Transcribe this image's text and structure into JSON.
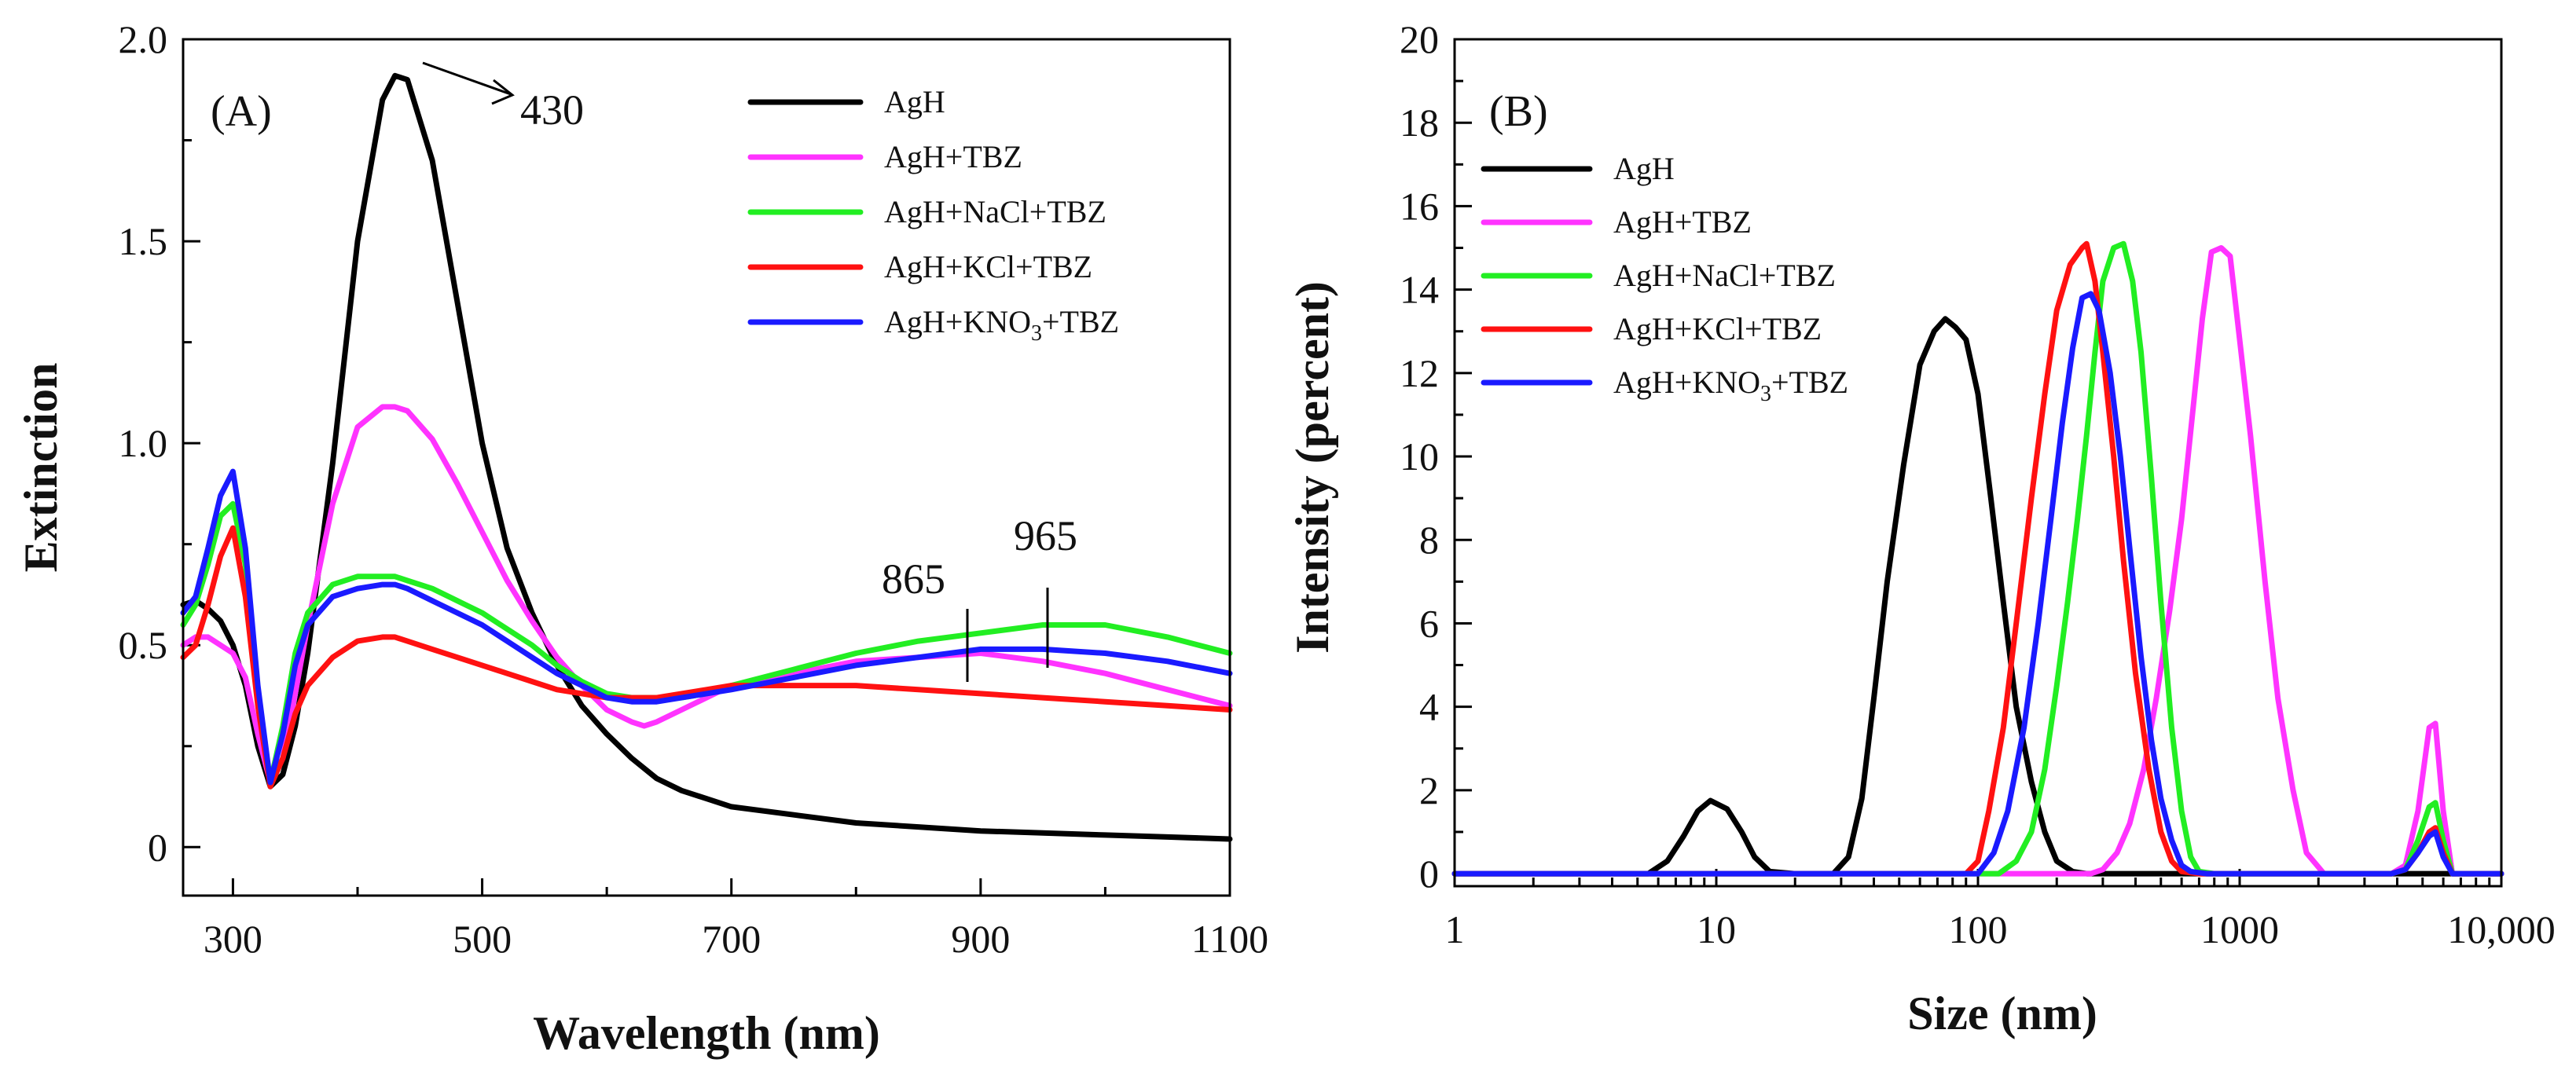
{
  "chart_data": [
    {
      "panel": "(A)",
      "type": "line",
      "xlabel": "Wavelength (nm)",
      "ylabel": "Extinction",
      "xlim": [
        260,
        1100
      ],
      "ylim": [
        -0.12,
        2.0
      ],
      "xticks": [
        300,
        500,
        700,
        900,
        1100
      ],
      "xtick_labels": [
        "300",
        "500",
        "700",
        "900",
        "1100"
      ],
      "yticks": [
        0,
        0.5,
        1.0,
        1.5,
        2.0
      ],
      "ytick_labels": [
        "0",
        "0.5",
        "1.0",
        "1.5",
        "2.0"
      ],
      "legend_position": "top-right",
      "annotations": [
        {
          "text": "430",
          "x": 430,
          "y": 1.9
        },
        {
          "text": "865",
          "x": 890,
          "y": 0.48
        },
        {
          "text": "965",
          "x": 960,
          "y": 0.55
        }
      ],
      "series": [
        {
          "name": "AgH",
          "name_base": "AgH",
          "color": "#000000",
          "x": [
            260,
            270,
            280,
            290,
            300,
            310,
            320,
            330,
            340,
            350,
            360,
            380,
            400,
            420,
            430,
            440,
            460,
            480,
            500,
            520,
            540,
            560,
            580,
            600,
            620,
            640,
            660,
            680,
            700,
            750,
            800,
            850,
            900,
            950,
            1000,
            1050,
            1100
          ],
          "y": [
            0.6,
            0.61,
            0.59,
            0.56,
            0.5,
            0.4,
            0.25,
            0.15,
            0.18,
            0.3,
            0.48,
            0.95,
            1.5,
            1.85,
            1.91,
            1.9,
            1.7,
            1.35,
            1.0,
            0.74,
            0.58,
            0.45,
            0.35,
            0.28,
            0.22,
            0.17,
            0.14,
            0.12,
            0.1,
            0.08,
            0.06,
            0.05,
            0.04,
            0.035,
            0.03,
            0.025,
            0.02
          ]
        },
        {
          "name": "AgH+TBZ",
          "name_base": "AgH+TBZ",
          "color": "#ff33ff",
          "x": [
            260,
            270,
            280,
            290,
            300,
            310,
            320,
            330,
            340,
            350,
            360,
            380,
            400,
            420,
            430,
            440,
            460,
            480,
            500,
            520,
            540,
            560,
            580,
            600,
            620,
            630,
            640,
            660,
            680,
            700,
            750,
            800,
            850,
            900,
            950,
            1000,
            1050,
            1100
          ],
          "y": [
            0.5,
            0.52,
            0.52,
            0.5,
            0.48,
            0.42,
            0.28,
            0.16,
            0.22,
            0.38,
            0.55,
            0.85,
            1.04,
            1.09,
            1.09,
            1.08,
            1.01,
            0.9,
            0.78,
            0.66,
            0.56,
            0.47,
            0.4,
            0.34,
            0.31,
            0.3,
            0.31,
            0.34,
            0.37,
            0.4,
            0.43,
            0.46,
            0.47,
            0.48,
            0.46,
            0.43,
            0.39,
            0.35
          ]
        },
        {
          "name": "AgH+NaCl+TBZ",
          "name_base": "AgH+NaCl+TBZ",
          "color": "#22ee22",
          "x": [
            260,
            270,
            280,
            290,
            300,
            310,
            320,
            330,
            340,
            350,
            360,
            380,
            400,
            420,
            430,
            440,
            460,
            480,
            500,
            520,
            540,
            560,
            580,
            600,
            620,
            640,
            660,
            680,
            700,
            750,
            800,
            850,
            900,
            950,
            1000,
            1050,
            1100
          ],
          "y": [
            0.55,
            0.6,
            0.7,
            0.82,
            0.85,
            0.7,
            0.38,
            0.16,
            0.3,
            0.48,
            0.58,
            0.65,
            0.67,
            0.67,
            0.67,
            0.66,
            0.64,
            0.61,
            0.58,
            0.54,
            0.5,
            0.45,
            0.41,
            0.38,
            0.37,
            0.37,
            0.37,
            0.38,
            0.4,
            0.44,
            0.48,
            0.51,
            0.53,
            0.55,
            0.55,
            0.52,
            0.48
          ]
        },
        {
          "name": "AgH+KCl+TBZ",
          "name_base": "AgH+KCl+TBZ",
          "color": "#ff1111",
          "x": [
            260,
            270,
            280,
            290,
            300,
            310,
            320,
            330,
            340,
            350,
            360,
            380,
            400,
            420,
            430,
            440,
            460,
            480,
            500,
            520,
            540,
            560,
            580,
            600,
            620,
            640,
            660,
            680,
            700,
            750,
            800,
            850,
            900,
            950,
            1000,
            1050,
            1100
          ],
          "y": [
            0.47,
            0.5,
            0.6,
            0.72,
            0.79,
            0.62,
            0.35,
            0.15,
            0.22,
            0.33,
            0.4,
            0.47,
            0.51,
            0.52,
            0.52,
            0.51,
            0.49,
            0.47,
            0.45,
            0.43,
            0.41,
            0.39,
            0.38,
            0.37,
            0.37,
            0.37,
            0.38,
            0.39,
            0.4,
            0.4,
            0.4,
            0.39,
            0.38,
            0.37,
            0.36,
            0.35,
            0.34
          ]
        },
        {
          "name": "AgH+KNO₃+TBZ",
          "name_base": "AgH+KNO",
          "name_sub": "3",
          "name_tail": "+TBZ",
          "color": "#1a1aff",
          "x": [
            260,
            270,
            280,
            290,
            300,
            310,
            320,
            330,
            340,
            350,
            360,
            380,
            400,
            420,
            430,
            440,
            460,
            480,
            500,
            520,
            540,
            560,
            580,
            600,
            620,
            640,
            660,
            680,
            700,
            750,
            800,
            850,
            900,
            950,
            1000,
            1050,
            1100
          ],
          "y": [
            0.58,
            0.62,
            0.74,
            0.87,
            0.93,
            0.74,
            0.4,
            0.16,
            0.28,
            0.45,
            0.55,
            0.62,
            0.64,
            0.65,
            0.65,
            0.64,
            0.61,
            0.58,
            0.55,
            0.51,
            0.47,
            0.43,
            0.4,
            0.37,
            0.36,
            0.36,
            0.37,
            0.38,
            0.39,
            0.42,
            0.45,
            0.47,
            0.49,
            0.49,
            0.48,
            0.46,
            0.43
          ]
        }
      ]
    },
    {
      "panel": "(B)",
      "type": "line",
      "xscale": "log",
      "xlabel": "Size (nm)",
      "ylabel": "Intensity (percent)",
      "xlim": [
        1,
        10000
      ],
      "ylim": [
        -0.3,
        20
      ],
      "xticks": [
        1,
        10,
        100,
        1000,
        10000
      ],
      "xtick_labels": [
        "1",
        "10",
        "100",
        "1000",
        "10,000"
      ],
      "yticks": [
        0,
        2,
        4,
        6,
        8,
        10,
        12,
        14,
        16,
        18,
        20
      ],
      "ytick_labels": [
        "0",
        "2",
        "4",
        "6",
        "8",
        "10",
        "12",
        "14",
        "16",
        "18",
        "20"
      ],
      "legend_position": "top-left",
      "series": [
        {
          "name": "AgH",
          "name_base": "AgH",
          "color": "#000000",
          "x": [
            1,
            5.5,
            6.5,
            7.5,
            8.5,
            9.5,
            11,
            12.5,
            14,
            16,
            20,
            28,
            32,
            36,
            40,
            45,
            52,
            60,
            68,
            75,
            82,
            90,
            100,
            112,
            125,
            140,
            160,
            180,
            200,
            230,
            260,
            1000,
            10000
          ],
          "y": [
            0,
            0,
            0.3,
            0.9,
            1.5,
            1.75,
            1.55,
            1.0,
            0.4,
            0.05,
            0,
            0,
            0.4,
            1.8,
            4.2,
            7.0,
            9.8,
            12.2,
            13.0,
            13.3,
            13.1,
            12.8,
            11.5,
            9.0,
            6.5,
            4.0,
            2.2,
            1.0,
            0.3,
            0.05,
            0,
            0,
            0
          ]
        },
        {
          "name": "AgH+TBZ",
          "name_base": "AgH+TBZ",
          "color": "#ff33ff",
          "x": [
            1,
            270,
            300,
            340,
            380,
            430,
            480,
            540,
            600,
            660,
            720,
            780,
            850,
            920,
            1000,
            1100,
            1250,
            1400,
            1600,
            1800,
            2100,
            3800,
            4300,
            4800,
            5300,
            5600,
            6000,
            6500,
            10000
          ],
          "y": [
            0,
            0,
            0.1,
            0.5,
            1.2,
            2.5,
            4.2,
            6.3,
            8.5,
            11.0,
            13.3,
            14.9,
            15.0,
            14.8,
            12.8,
            10.5,
            7.0,
            4.2,
            2.0,
            0.5,
            0,
            0,
            0.2,
            1.5,
            3.5,
            3.6,
            1.5,
            0,
            0
          ]
        },
        {
          "name": "AgH+NaCl+TBZ",
          "name_base": "AgH+NaCl+TBZ",
          "color": "#22ee22",
          "x": [
            1,
            120,
            140,
            160,
            180,
            200,
            220,
            240,
            260,
            280,
            300,
            330,
            360,
            390,
            420,
            460,
            500,
            550,
            600,
            650,
            700,
            800,
            3800,
            4300,
            4800,
            5300,
            5600,
            6000,
            6500,
            10000
          ],
          "y": [
            0,
            0,
            0.3,
            1.0,
            2.5,
            4.5,
            6.5,
            8.5,
            10.5,
            12.5,
            14.2,
            15.0,
            15.1,
            14.2,
            12.5,
            9.5,
            6.5,
            3.5,
            1.5,
            0.4,
            0.05,
            0,
            0,
            0.1,
            0.8,
            1.6,
            1.7,
            0.8,
            0,
            0
          ]
        },
        {
          "name": "AgH+KCl+TBZ",
          "name_base": "AgH+KCl+TBZ",
          "color": "#ff1111",
          "x": [
            1,
            90,
            100,
            110,
            125,
            140,
            160,
            180,
            200,
            225,
            250,
            260,
            280,
            300,
            330,
            360,
            400,
            450,
            500,
            550,
            600,
            700,
            3800,
            4300,
            4800,
            5300,
            5600,
            6000,
            6500,
            10000
          ],
          "y": [
            0,
            0,
            0.3,
            1.5,
            3.5,
            6.0,
            9.0,
            11.5,
            13.5,
            14.6,
            15.0,
            15.1,
            14.2,
            12.5,
            10.0,
            7.5,
            4.8,
            2.5,
            1.0,
            0.3,
            0.05,
            0,
            0,
            0.1,
            0.5,
            1.0,
            1.1,
            0.5,
            0,
            0
          ]
        },
        {
          "name": "AgH+KNO₃+TBZ",
          "name_base": "AgH+KNO",
          "name_sub": "3",
          "name_tail": "+TBZ",
          "color": "#1a1aff",
          "x": [
            1,
            100,
            115,
            130,
            150,
            170,
            190,
            210,
            230,
            250,
            270,
            290,
            320,
            350,
            380,
            420,
            460,
            500,
            550,
            600,
            650,
            750,
            3800,
            4300,
            4800,
            5300,
            5600,
            6000,
            6500,
            10000
          ],
          "y": [
            0,
            0,
            0.5,
            1.5,
            3.5,
            6.0,
            8.5,
            10.8,
            12.6,
            13.8,
            13.9,
            13.5,
            12.0,
            10.0,
            7.8,
            5.2,
            3.2,
            1.8,
            0.8,
            0.2,
            0.05,
            0,
            0,
            0.1,
            0.5,
            0.9,
            1.0,
            0.4,
            0,
            0
          ]
        }
      ]
    }
  ]
}
